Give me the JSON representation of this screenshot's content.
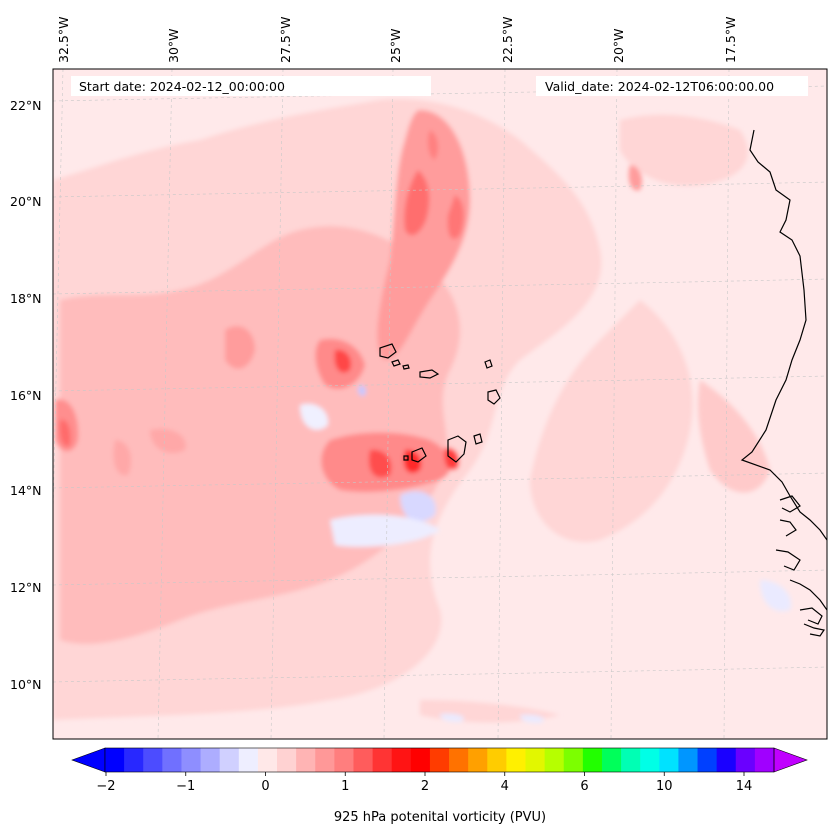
{
  "header": {
    "start_date": "Start date: 2024-02-12_00:00:00",
    "valid_date": "Valid_date: 2024-02-12T06:00:00.00"
  },
  "map": {
    "lon_labels": [
      "32.5°W",
      "30°W",
      "27.5°W",
      "25°W",
      "22.5°W",
      "20°W",
      "17.5°W"
    ],
    "lat_labels": [
      "22°N",
      "20°N",
      "18°N",
      "16°N",
      "14°N",
      "12°N",
      "10°N"
    ],
    "coastline_color": "#000000",
    "gridline_color": "#c8c8c8",
    "field_background_color": "#ffe9ea"
  },
  "colorbar": {
    "label": "925 hPa potenital vorticity (PVU)",
    "ticks": [
      "−2",
      "−1",
      "0",
      "1",
      "2",
      "4",
      "6",
      "10",
      "14"
    ],
    "colors": [
      "#0000ff",
      "#2828ff",
      "#4c4cff",
      "#7070ff",
      "#8e8eff",
      "#adadff",
      "#d0d0ff",
      "#eeeeff",
      "#ffe8e8",
      "#ffd2d2",
      "#ffb4b4",
      "#ff9898",
      "#ff7e7e",
      "#ff5c5c",
      "#ff3434",
      "#ff1414",
      "#ff0000",
      "#ff3c00",
      "#ff7200",
      "#ffa000",
      "#ffcc00",
      "#fff000",
      "#e2f700",
      "#b6ff00",
      "#7cff00",
      "#22ff00",
      "#00ff5a",
      "#00ffb4",
      "#00ffe6",
      "#00e2ff",
      "#0096ff",
      "#0040ff",
      "#1a00ff",
      "#6a00ff",
      "#a000ff"
    ],
    "under_color": "#0000ff",
    "over_color": "#c000ff"
  }
}
